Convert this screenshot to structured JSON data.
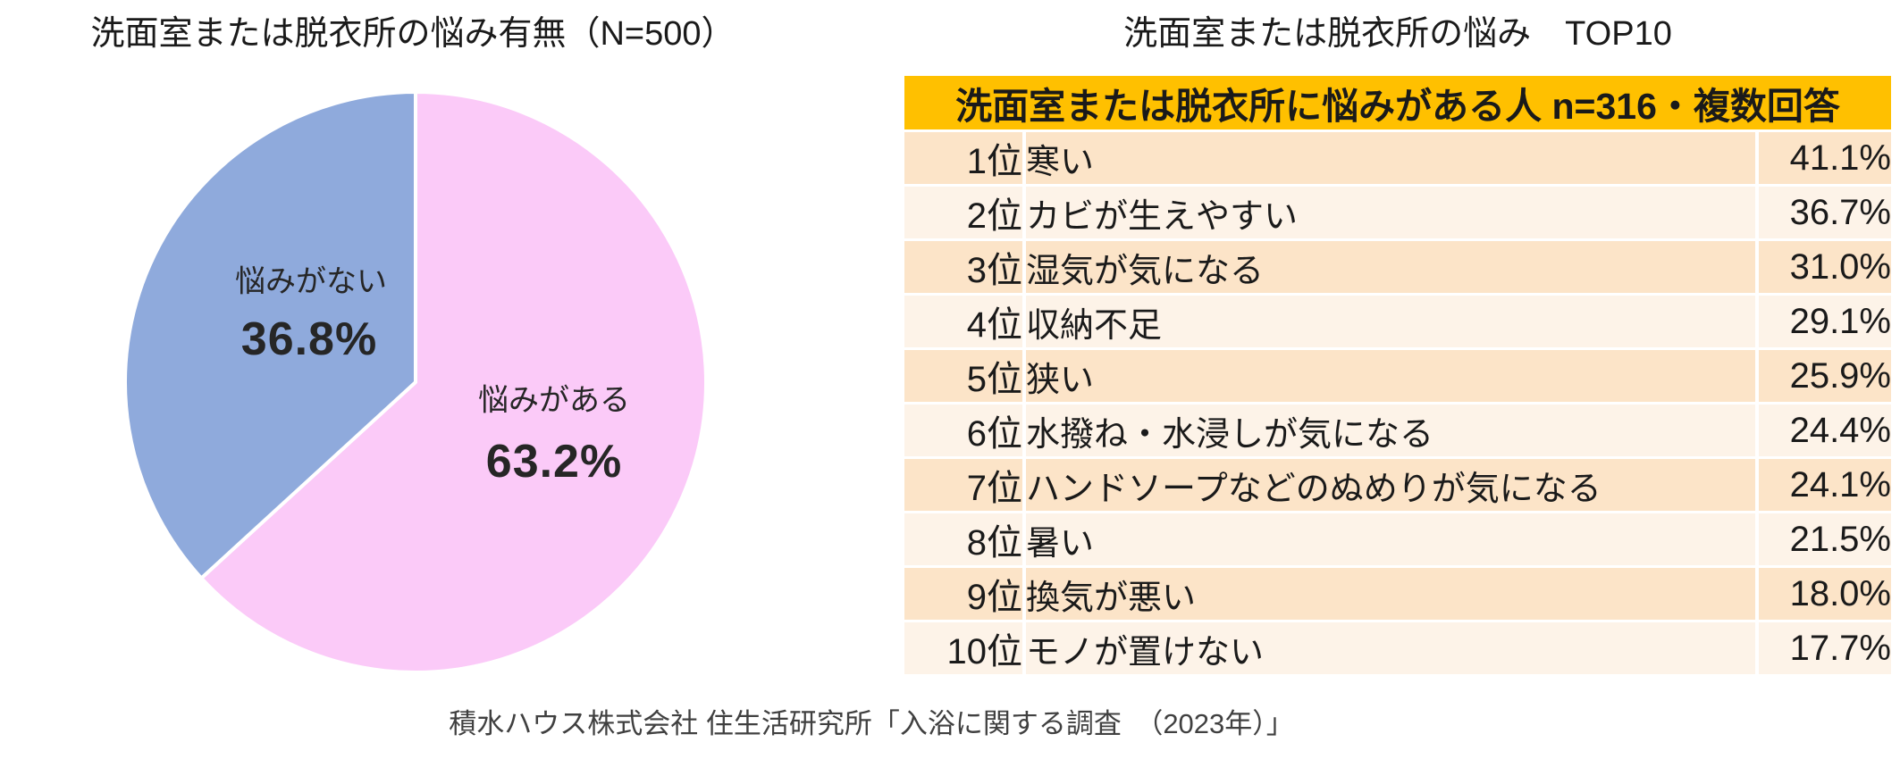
{
  "colors": {
    "pie-yes": "#FBCAF8",
    "pie-no": "#8FAADC",
    "table-header-bg": "#FFC000",
    "row-odd-bg": "#FCE4C8",
    "row-even-bg": "#FDF3E8",
    "text": "#1A1A1A",
    "source-text": "#404040"
  },
  "footer": {
    "source": "積水ハウス株式会社 住生活研究所「入浴に関する調査　（2023年）」"
  },
  "chart_data": [
    {
      "type": "pie",
      "title": "洗面室または脱衣所の悩み有無（N=500）",
      "labels": [
        "悩みがある",
        "悩みがない"
      ],
      "values": [
        63.2,
        36.8
      ],
      "pct_labels": [
        "63.2%",
        "36.8%"
      ],
      "colors": [
        "#FBCAF8",
        "#8FAADC"
      ],
      "start_angle_deg": 0,
      "direction": "clockwise",
      "legend": "labels-inside-slices"
    },
    {
      "type": "table",
      "title": "洗面室または脱衣所の悩み　TOP10",
      "header": "洗面室または脱衣所に悩みがある人 n=316・複数回答",
      "columns": [
        "rank",
        "item",
        "percentage"
      ],
      "rows": [
        [
          "1位",
          "寒い",
          "41.1%"
        ],
        [
          "2位",
          "カビが生えやすい",
          "36.7%"
        ],
        [
          "3位",
          "湿気が気になる",
          "31.0%"
        ],
        [
          "4位",
          "収納不足",
          "29.1%"
        ],
        [
          "5位",
          "狭い",
          "25.9%"
        ],
        [
          "6位",
          "水撥ね・水浸しが気になる",
          "24.4%"
        ],
        [
          "7位",
          "ハンドソープなどのぬめりが気になる",
          "24.1%"
        ],
        [
          "8位",
          "暑い",
          "21.5%"
        ],
        [
          "9位",
          "換気が悪い",
          "18.0%"
        ],
        [
          "10位",
          "モノが置けない",
          "17.7%"
        ]
      ]
    }
  ]
}
